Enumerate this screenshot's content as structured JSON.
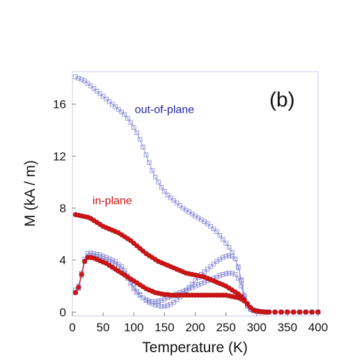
{
  "chart_data": {
    "type": "scatter",
    "xlabel": "Temperature (K)",
    "ylabel": "M (kA / m)",
    "xlim": [
      0,
      400
    ],
    "ylim": [
      -0.3,
      18.5
    ],
    "x_ticks": [
      0,
      50,
      100,
      150,
      200,
      250,
      300,
      350,
      400
    ],
    "y_ticks": [
      0,
      4,
      8,
      12,
      16
    ],
    "grid": false,
    "panel_label": "(b)",
    "annotations": [
      {
        "text": "out-of-plane",
        "x": 150,
        "y": 15.3,
        "color": "#2222aa"
      },
      {
        "text": "in-plane",
        "x": 65,
        "y": 8.3,
        "color": "#cc1111"
      }
    ],
    "colors": {
      "out_of_plane": "#8a8ad8",
      "in_plane": "#d41414",
      "in_plane_edge": "#9a1010",
      "frame": "#c8c8e8"
    },
    "series": [
      {
        "marker": "open-square",
        "color": "#8a8ad8",
        "x": [
          5,
          10,
          15,
          20,
          25,
          30,
          35,
          40,
          45,
          50,
          55,
          60,
          65,
          70,
          75,
          80,
          85,
          90,
          95,
          100,
          105,
          110,
          115,
          120,
          125,
          130,
          135,
          140,
          145,
          150,
          155,
          160,
          165,
          170,
          175,
          180,
          185,
          190,
          195,
          200,
          205,
          210,
          215,
          220,
          225,
          230,
          235,
          240,
          245,
          250,
          255,
          260,
          265,
          270,
          275,
          280,
          285,
          290,
          295,
          300,
          305,
          310,
          315,
          320,
          330,
          340,
          350,
          360,
          370,
          380,
          390,
          400
        ],
        "y": [
          18.1,
          18.0,
          17.9,
          17.8,
          17.6,
          17.4,
          17.2,
          17.0,
          16.8,
          16.6,
          16.4,
          16.2,
          16.0,
          15.8,
          15.6,
          15.4,
          15.2,
          14.9,
          14.6,
          14.2,
          13.8,
          13.3,
          12.7,
          12.1,
          11.5,
          10.9,
          10.4,
          10.0,
          9.6,
          9.3,
          9.0,
          8.8,
          8.6,
          8.4,
          8.2,
          8.0,
          7.85,
          7.7,
          7.55,
          7.4,
          7.25,
          7.1,
          6.95,
          6.8,
          6.6,
          6.4,
          6.2,
          5.9,
          5.6,
          5.3,
          5.0,
          4.6,
          4.1,
          3.4,
          2.4,
          1.2,
          0.5,
          0.25,
          0.15,
          0.1,
          0.05,
          0.02,
          0,
          0,
          0,
          0,
          0,
          0,
          0,
          0,
          0,
          0
        ]
      },
      {
        "marker": "open-square",
        "color": "#8a8ad8",
        "x": [
          5,
          10,
          15,
          20,
          25,
          30,
          35,
          40,
          45,
          50,
          55,
          60,
          65,
          70,
          75,
          80,
          85,
          90,
          95,
          100,
          105,
          110,
          115,
          120,
          125,
          130,
          135,
          140,
          145,
          150,
          155,
          160,
          165,
          170,
          175,
          180,
          185,
          190,
          195,
          200,
          205,
          210,
          215,
          220,
          225,
          230,
          235,
          240,
          245,
          250,
          255,
          260,
          265,
          270,
          275,
          280,
          285,
          290,
          295,
          300,
          305,
          310,
          315,
          320,
          330,
          340,
          350,
          360,
          370,
          380,
          390,
          400
        ],
        "y": [
          1.7,
          2.0,
          3.0,
          4.1,
          4.5,
          4.55,
          4.5,
          4.45,
          4.4,
          4.3,
          4.2,
          4.1,
          4.0,
          3.9,
          3.7,
          3.5,
          3.2,
          2.8,
          2.3,
          1.9,
          1.6,
          1.35,
          1.1,
          0.9,
          0.75,
          0.65,
          0.55,
          0.5,
          0.45,
          0.45,
          0.5,
          0.6,
          0.75,
          0.95,
          1.15,
          1.4,
          1.65,
          1.9,
          2.15,
          2.4,
          2.65,
          2.9,
          3.1,
          3.3,
          3.5,
          3.7,
          3.9,
          4.05,
          4.2,
          4.3,
          4.35,
          4.3,
          4.1,
          3.5,
          2.5,
          1.3,
          0.5,
          0.25,
          0.15,
          0.1,
          0.05,
          0.02,
          0,
          0,
          0,
          0,
          0,
          0,
          0,
          0,
          0,
          0
        ]
      },
      {
        "marker": "open-square",
        "color": "#8a8ad8",
        "x": [
          5,
          10,
          15,
          20,
          25,
          30,
          35,
          40,
          45,
          50,
          55,
          60,
          65,
          70,
          75,
          80,
          85,
          90,
          95,
          100,
          105,
          110,
          115,
          120,
          125,
          130,
          135,
          140,
          145,
          150,
          155,
          160,
          165,
          170,
          175,
          180,
          185,
          190,
          195,
          200,
          205,
          210,
          215,
          220,
          225,
          230,
          235,
          240,
          245,
          250,
          255,
          260,
          265,
          270,
          275,
          280,
          285,
          290,
          295,
          300,
          305,
          310,
          315,
          320,
          330,
          340,
          350,
          360,
          370,
          380,
          390,
          400
        ],
        "y": [
          1.5,
          1.8,
          2.8,
          3.9,
          4.3,
          4.35,
          4.3,
          4.25,
          4.2,
          4.1,
          4.0,
          3.9,
          3.8,
          3.7,
          3.5,
          3.3,
          3.0,
          2.6,
          2.2,
          1.8,
          1.5,
          1.3,
          1.1,
          0.95,
          0.85,
          0.8,
          0.8,
          0.85,
          0.9,
          1.0,
          1.1,
          1.2,
          1.3,
          1.4,
          1.5,
          1.6,
          1.7,
          1.8,
          1.9,
          2.0,
          2.1,
          2.2,
          2.3,
          2.4,
          2.5,
          2.6,
          2.7,
          2.8,
          2.9,
          2.95,
          3.0,
          3.0,
          2.9,
          2.6,
          2.0,
          1.1,
          0.45,
          0.2,
          0.1,
          0.05,
          0.02,
          0,
          0,
          0,
          0,
          0,
          0,
          0,
          0,
          0,
          0,
          0
        ]
      },
      {
        "marker": "filled-circle",
        "color": "#d41414",
        "x": [
          5,
          10,
          15,
          20,
          25,
          30,
          35,
          40,
          45,
          50,
          55,
          60,
          65,
          70,
          75,
          80,
          85,
          90,
          95,
          100,
          105,
          110,
          115,
          120,
          125,
          130,
          135,
          140,
          145,
          150,
          155,
          160,
          165,
          170,
          175,
          180,
          185,
          190,
          195,
          200,
          205,
          210,
          215,
          220,
          225,
          230,
          235,
          240,
          245,
          250,
          255,
          260,
          265,
          270,
          275,
          280,
          285,
          290,
          295,
          300,
          305,
          310,
          315,
          320,
          330,
          340,
          350,
          360,
          370,
          380,
          390,
          400
        ],
        "y": [
          7.5,
          7.45,
          7.4,
          7.35,
          7.3,
          7.2,
          7.05,
          6.9,
          6.75,
          6.6,
          6.5,
          6.4,
          6.3,
          6.2,
          6.1,
          5.95,
          5.8,
          5.65,
          5.5,
          5.3,
          5.1,
          4.9,
          4.7,
          4.5,
          4.35,
          4.2,
          4.05,
          3.9,
          3.8,
          3.7,
          3.6,
          3.5,
          3.4,
          3.3,
          3.2,
          3.1,
          3.0,
          2.95,
          2.9,
          2.85,
          2.8,
          2.75,
          2.7,
          2.6,
          2.5,
          2.4,
          2.3,
          2.2,
          2.1,
          2.0,
          1.85,
          1.7,
          1.55,
          1.4,
          1.2,
          0.95,
          0.65,
          0.35,
          0.15,
          0.08,
          0.04,
          0.02,
          0,
          0,
          0,
          0,
          0,
          0,
          0,
          0,
          0,
          0
        ]
      },
      {
        "marker": "filled-circle",
        "color": "#d41414",
        "x": [
          5,
          10,
          15,
          20,
          25,
          30,
          35,
          40,
          45,
          50,
          55,
          60,
          65,
          70,
          75,
          80,
          85,
          90,
          95,
          100,
          105,
          110,
          115,
          120,
          125,
          130,
          135,
          140,
          145,
          150,
          155,
          160,
          165,
          170,
          175,
          180,
          185,
          190,
          195,
          200,
          205,
          210,
          215,
          220,
          225,
          230,
          235,
          240,
          245,
          250,
          255,
          260,
          265,
          270,
          275,
          280,
          285,
          290,
          295,
          300,
          305,
          310,
          315,
          320,
          330,
          340,
          350,
          360,
          370,
          380,
          390,
          400
        ],
        "y": [
          1.5,
          1.9,
          2.9,
          3.9,
          4.2,
          4.2,
          4.15,
          4.05,
          3.95,
          3.85,
          3.75,
          3.6,
          3.45,
          3.3,
          3.15,
          3.0,
          2.85,
          2.7,
          2.55,
          2.4,
          2.25,
          2.1,
          1.95,
          1.8,
          1.7,
          1.6,
          1.5,
          1.45,
          1.4,
          1.35,
          1.35,
          1.3,
          1.3,
          1.3,
          1.3,
          1.3,
          1.3,
          1.3,
          1.3,
          1.3,
          1.3,
          1.3,
          1.3,
          1.3,
          1.3,
          1.3,
          1.3,
          1.3,
          1.3,
          1.3,
          1.25,
          1.2,
          1.15,
          1.1,
          1.0,
          0.85,
          0.6,
          0.35,
          0.15,
          0.08,
          0.04,
          0.02,
          0,
          0,
          0,
          0,
          0,
          0,
          0,
          0,
          0,
          0
        ]
      }
    ]
  }
}
